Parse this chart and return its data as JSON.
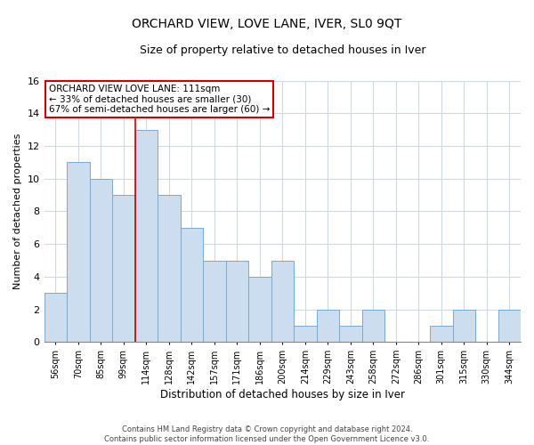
{
  "title": "ORCHARD VIEW, LOVE LANE, IVER, SL0 9QT",
  "subtitle": "Size of property relative to detached houses in Iver",
  "xlabel": "Distribution of detached houses by size in Iver",
  "ylabel": "Number of detached properties",
  "footnote1": "Contains HM Land Registry data © Crown copyright and database right 2024.",
  "footnote2": "Contains public sector information licensed under the Open Government Licence v3.0.",
  "categories": [
    "56sqm",
    "70sqm",
    "85sqm",
    "99sqm",
    "114sqm",
    "128sqm",
    "142sqm",
    "157sqm",
    "171sqm",
    "186sqm",
    "200sqm",
    "214sqm",
    "229sqm",
    "243sqm",
    "258sqm",
    "272sqm",
    "286sqm",
    "301sqm",
    "315sqm",
    "330sqm",
    "344sqm"
  ],
  "values": [
    3,
    11,
    10,
    9,
    13,
    9,
    7,
    5,
    5,
    4,
    5,
    1,
    2,
    1,
    2,
    0,
    0,
    1,
    2,
    0,
    2
  ],
  "bar_color": "#ccddf0",
  "bar_edge_color": "#7aa8d0",
  "background_color": "#ffffff",
  "fig_background_color": "#ffffff",
  "grid_color": "#d0d8e0",
  "annotation_line1": "ORCHARD VIEW LOVE LANE: 111sqm",
  "annotation_line2": "← 33% of detached houses are smaller (30)",
  "annotation_line3": "67% of semi-detached houses are larger (60) →",
  "annotation_box_color": "#ffffff",
  "annotation_box_edge": "#cc0000",
  "ylim": [
    0,
    16
  ],
  "yticks": [
    0,
    2,
    4,
    6,
    8,
    10,
    12,
    14,
    16
  ],
  "vline_color": "#cc0000",
  "vline_x_index": 4
}
